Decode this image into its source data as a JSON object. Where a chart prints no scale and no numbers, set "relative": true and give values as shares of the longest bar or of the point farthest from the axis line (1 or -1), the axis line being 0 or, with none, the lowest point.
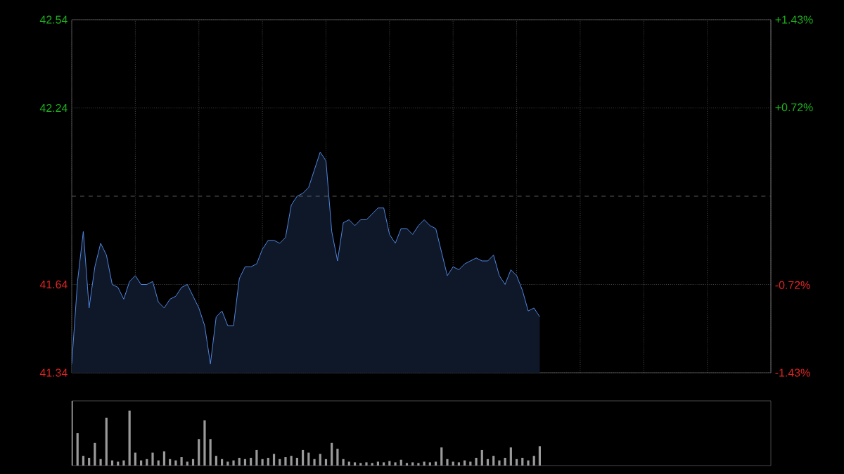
{
  "chart_data": [
    {
      "type": "area",
      "color": "#4f86e0",
      "categories": [
        null,
        null,
        null,
        null,
        null,
        null,
        null,
        null,
        null,
        null,
        null,
        null,
        null,
        null,
        null,
        null,
        null,
        null,
        null,
        null,
        null,
        null,
        null,
        null,
        null,
        null,
        null,
        null,
        null,
        null,
        null,
        null,
        null,
        null,
        null,
        null,
        null,
        null,
        null,
        null,
        null,
        null,
        null,
        null,
        null,
        null,
        null,
        null,
        null,
        null,
        null,
        null,
        null,
        null,
        null,
        null,
        null,
        null,
        null,
        null,
        null,
        null,
        null,
        null,
        null,
        null,
        null,
        null,
        null,
        null,
        null,
        null,
        null,
        null,
        null,
        null,
        null,
        null,
        null,
        null,
        null,
        null,
        null,
        null,
        null,
        null,
        null,
        null,
        null,
        null,
        null,
        null,
        null,
        null,
        null,
        null,
        null,
        null,
        null,
        null,
        null,
        null,
        null,
        null,
        null,
        null,
        null,
        null,
        null,
        null,
        null,
        null,
        null,
        null,
        null,
        null,
        null,
        null,
        null,
        null,
        null,
        null
      ],
      "values": [
        41.37,
        41.65,
        41.82,
        41.56,
        41.7,
        41.78,
        41.74,
        41.64,
        41.63,
        41.59,
        41.65,
        41.67,
        41.64,
        41.64,
        41.65,
        41.58,
        41.56,
        41.59,
        41.6,
        41.63,
        41.64,
        41.6,
        41.56,
        41.5,
        41.37,
        41.53,
        41.55,
        41.5,
        41.5,
        41.66,
        41.7,
        41.7,
        41.71,
        41.76,
        41.79,
        41.79,
        41.78,
        41.8,
        41.91,
        41.94,
        41.95,
        41.97,
        42.03,
        42.09,
        42.06,
        41.82,
        41.72,
        41.85,
        41.86,
        41.84,
        41.86,
        41.86,
        41.88,
        41.9,
        41.9,
        41.81,
        41.78,
        41.83,
        41.83,
        41.81,
        41.84,
        41.86,
        41.84,
        41.83,
        41.75,
        41.67,
        41.7,
        41.69,
        41.71,
        41.72,
        41.73,
        41.72,
        41.72,
        41.74,
        41.67,
        41.64,
        41.69,
        41.67,
        41.62,
        41.55,
        41.56,
        41.53,
        null,
        null,
        null,
        null,
        null,
        null,
        null,
        null,
        null,
        null,
        null,
        null,
        null,
        null,
        null,
        null,
        null,
        null,
        null,
        null,
        null,
        null,
        null,
        null,
        null,
        null,
        null,
        null,
        null,
        null,
        null,
        null,
        null,
        null,
        null,
        null,
        null,
        null,
        null,
        null
      ],
      "ylim": [
        41.34,
        42.54
      ],
      "yticks": [
        41.34,
        41.64,
        42.24,
        42.54
      ],
      "y2lim": [
        -1.43,
        1.43
      ],
      "y2ticks": [
        {
          "value": -1.43,
          "label": "-1.43%"
        },
        {
          "value": -0.72,
          "label": "-0.72%"
        },
        {
          "value": 0.72,
          "label": "+0.72%"
        },
        {
          "value": 1.43,
          "label": "+1.43%"
        }
      ],
      "ref_lines": [
        {
          "axis": "y",
          "value": 41.94,
          "line_style": "dashed"
        }
      ],
      "grid": true,
      "tick_labels": "y"
    },
    {
      "type": "bar",
      "color": "#9a9a9a",
      "relative": true,
      "categories": [
        null,
        null,
        null,
        null,
        null,
        null,
        null,
        null,
        null,
        null,
        null,
        null,
        null,
        null,
        null,
        null,
        null,
        null,
        null,
        null,
        null,
        null,
        null,
        null,
        null,
        null,
        null,
        null,
        null,
        null,
        null,
        null,
        null,
        null,
        null,
        null,
        null,
        null,
        null,
        null,
        null,
        null,
        null,
        null,
        null,
        null,
        null,
        null,
        null,
        null,
        null,
        null,
        null,
        null,
        null,
        null,
        null,
        null,
        null,
        null,
        null,
        null,
        null,
        null,
        null,
        null,
        null,
        null,
        null,
        null,
        null,
        null,
        null,
        null,
        null,
        null,
        null,
        null,
        null,
        null,
        null,
        null,
        null,
        null,
        null,
        null,
        null,
        null,
        null,
        null,
        null,
        null,
        null,
        null,
        null,
        null,
        null,
        null,
        null,
        null,
        null,
        null,
        null,
        null,
        null,
        null,
        null,
        null,
        null,
        null,
        null,
        null,
        null,
        null,
        null,
        null,
        null,
        null,
        null,
        null,
        null,
        null
      ],
      "values": [
        1.0,
        0.5,
        0.15,
        0.12,
        0.35,
        0.1,
        0.74,
        0.08,
        0.06,
        0.08,
        0.85,
        0.2,
        0.08,
        0.1,
        0.2,
        0.08,
        0.22,
        0.1,
        0.08,
        0.13,
        0.06,
        0.1,
        0.41,
        0.7,
        0.41,
        0.15,
        0.1,
        0.06,
        0.08,
        0.12,
        0.1,
        0.12,
        0.24,
        0.1,
        0.12,
        0.18,
        0.1,
        0.13,
        0.15,
        0.12,
        0.24,
        0.2,
        0.1,
        0.18,
        0.1,
        0.35,
        0.26,
        0.1,
        0.06,
        0.05,
        0.04,
        0.05,
        0.04,
        0.06,
        0.05,
        0.07,
        0.05,
        0.09,
        0.04,
        0.05,
        0.04,
        0.06,
        0.05,
        0.06,
        0.28,
        0.1,
        0.06,
        0.05,
        0.08,
        0.06,
        0.12,
        0.24,
        0.1,
        0.15,
        0.08,
        0.12,
        0.28,
        0.1,
        0.12,
        0.08,
        0.15,
        0.3,
        null,
        null,
        null,
        null,
        null,
        null,
        null,
        null,
        null,
        null,
        null,
        null,
        null,
        null,
        null,
        null,
        null,
        null,
        null,
        null,
        null,
        null,
        null,
        null,
        null,
        null,
        null,
        null,
        null,
        null,
        null,
        null,
        null,
        null,
        null,
        null,
        null,
        null,
        null,
        null
      ],
      "tick_labels": false
    }
  ]
}
